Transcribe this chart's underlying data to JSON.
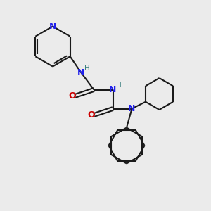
{
  "bg_color": "#ebebeb",
  "bond_color": "#1a1a1a",
  "N_color": "#2020ee",
  "O_color": "#cc0000",
  "H_color": "#3a8080",
  "line_width": 1.5,
  "figsize": [
    3.0,
    3.0
  ],
  "dpi": 100,
  "xlim": [
    0,
    10
  ],
  "ylim": [
    0,
    10
  ]
}
